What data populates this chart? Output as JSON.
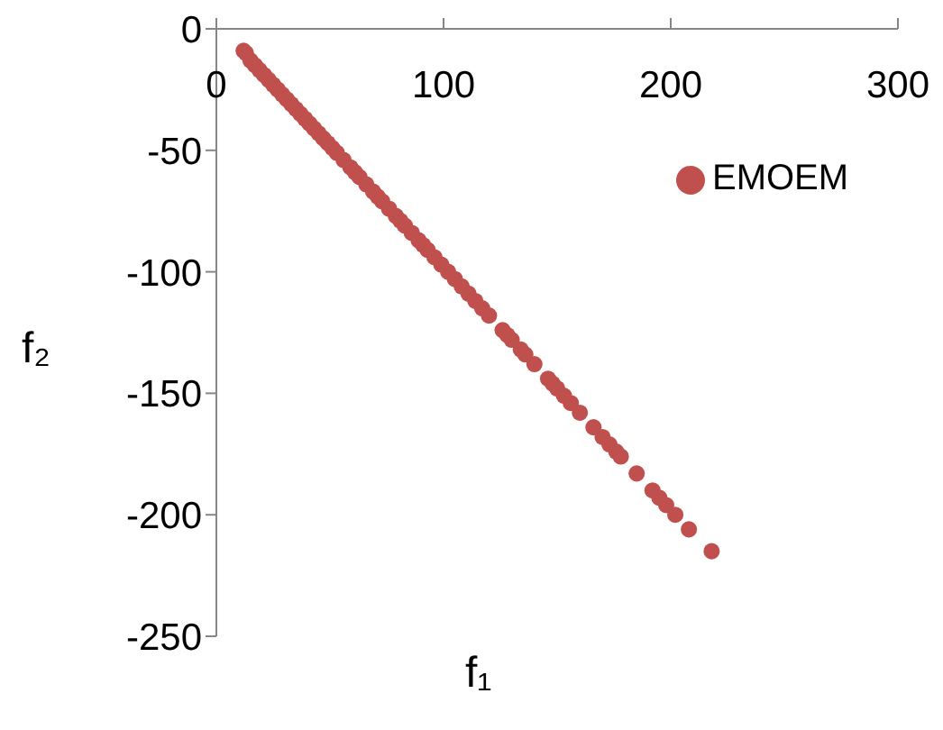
{
  "chart_data": {
    "type": "scatter",
    "xlabel": "f₁",
    "ylabel": "f₂",
    "xlim": [
      0,
      300
    ],
    "xticks": [
      0,
      100,
      200,
      300
    ],
    "ylim": [
      -250,
      0
    ],
    "yticks": [
      -250,
      -200,
      -150,
      -100,
      -50,
      0
    ],
    "legend": "top right",
    "marker": "circle",
    "grid": false,
    "series": [
      {
        "name": "EMOEM",
        "color": "#c0504d",
        "x": [
          12,
          13,
          15,
          17,
          19,
          21,
          23,
          25,
          27,
          29,
          31,
          33,
          35,
          37,
          39,
          41,
          43,
          45,
          47,
          49,
          51,
          53,
          56,
          59,
          61,
          63,
          66,
          69,
          71,
          73,
          76,
          79,
          81,
          83,
          86,
          89,
          91,
          93,
          96,
          99,
          102,
          105,
          108,
          111,
          114,
          117,
          120,
          126,
          128,
          130,
          134,
          136,
          140,
          146,
          148,
          150,
          153,
          156,
          160,
          166,
          170,
          173,
          176,
          178,
          185,
          192,
          195,
          198,
          202,
          208,
          218
        ],
        "values": [
          -9,
          -10,
          -13,
          -15,
          -17,
          -19,
          -21,
          -23,
          -25,
          -27,
          -29,
          -31,
          -33,
          -35,
          -37,
          -39,
          -41,
          -43,
          -45,
          -47,
          -49,
          -51,
          -54,
          -57,
          -59,
          -61,
          -64,
          -67,
          -69,
          -71,
          -74,
          -77,
          -79,
          -81,
          -84,
          -87,
          -89,
          -91,
          -94,
          -97,
          -100,
          -103,
          -106,
          -109,
          -112,
          -115,
          -118,
          -124,
          -126,
          -128,
          -132,
          -134,
          -138,
          -144,
          -146,
          -148,
          -151,
          -154,
          -158,
          -164,
          -168,
          -171,
          -174,
          -176,
          -183,
          -190,
          -193,
          -196,
          -200,
          -206,
          -215
        ]
      }
    ]
  }
}
